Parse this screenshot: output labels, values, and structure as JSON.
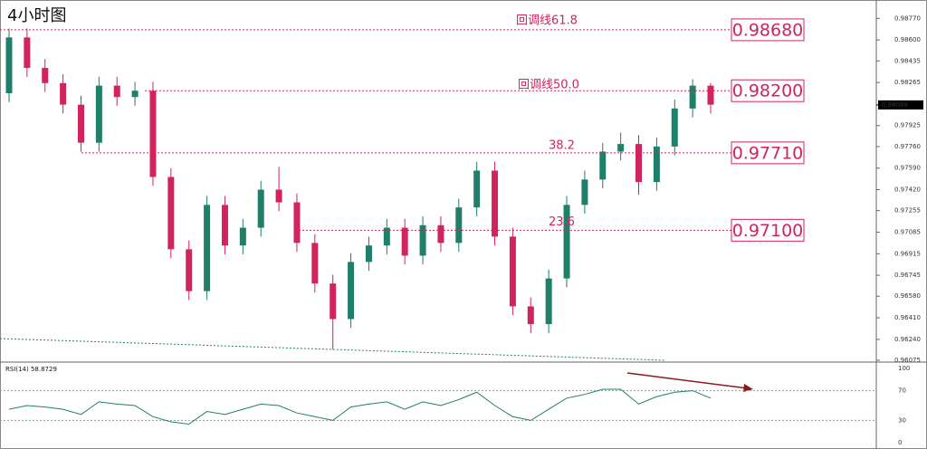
{
  "chart_data": [
    {
      "type": "candlestick",
      "title": "4小时图",
      "open": [
        0.9818,
        0.9862,
        0.9838,
        0.9826,
        0.9809,
        0.9779,
        0.9824,
        0.9815,
        0.982,
        0.9752,
        0.9695,
        0.9662,
        0.973,
        0.9698,
        0.9712,
        0.9742,
        0.9732,
        0.97,
        0.9668,
        0.964,
        0.9685,
        0.9698,
        0.9712,
        0.969,
        0.9714,
        0.97,
        0.9728,
        0.9757,
        0.9705,
        0.965,
        0.9636,
        0.9672,
        0.973,
        0.975,
        0.9772,
        0.9778,
        0.9748,
        0.9776,
        0.9806,
        0.9824
      ],
      "high": [
        0.9869,
        0.9869,
        0.9845,
        0.9833,
        0.9816,
        0.9831,
        0.9831,
        0.9827,
        0.9827,
        0.9759,
        0.9702,
        0.9737,
        0.9737,
        0.9719,
        0.9749,
        0.976,
        0.9739,
        0.9707,
        0.9675,
        0.9692,
        0.9705,
        0.9719,
        0.9719,
        0.9721,
        0.9721,
        0.9735,
        0.9764,
        0.9764,
        0.9712,
        0.9657,
        0.9679,
        0.9737,
        0.9757,
        0.9779,
        0.9787,
        0.9785,
        0.9783,
        0.9813,
        0.9829,
        0.9826
      ],
      "low": [
        0.9811,
        0.9831,
        0.9819,
        0.9802,
        0.9772,
        0.9772,
        0.9808,
        0.9808,
        0.9745,
        0.9688,
        0.9655,
        0.9655,
        0.9691,
        0.9691,
        0.9705,
        0.9725,
        0.9693,
        0.9661,
        0.9616,
        0.9633,
        0.9678,
        0.9691,
        0.9683,
        0.9683,
        0.9693,
        0.9693,
        0.9721,
        0.9698,
        0.9643,
        0.9629,
        0.9629,
        0.9665,
        0.9723,
        0.9743,
        0.9765,
        0.9738,
        0.9741,
        0.9769,
        0.9799,
        0.9802
      ],
      "close": [
        0.9862,
        0.9838,
        0.9826,
        0.9809,
        0.9779,
        0.9824,
        0.9815,
        0.982,
        0.9752,
        0.9695,
        0.9662,
        0.973,
        0.9698,
        0.9712,
        0.9742,
        0.9732,
        0.97,
        0.9668,
        0.964,
        0.9685,
        0.9698,
        0.9712,
        0.969,
        0.9714,
        0.97,
        0.9728,
        0.9757,
        0.9705,
        0.965,
        0.9636,
        0.9672,
        0.973,
        0.975,
        0.9772,
        0.9778,
        0.9748,
        0.9776,
        0.9806,
        0.9824,
        0.9809
      ],
      "up_color": "#1e7f6a",
      "down_color": "#d0245a",
      "ylim": [
        0.96075,
        0.98915
      ],
      "yticks": [
        {
          "value": 0.9877,
          "label": "0.98770"
        },
        {
          "value": 0.986,
          "label": "0.98600"
        },
        {
          "value": 0.98435,
          "label": "0.98435"
        },
        {
          "value": 0.98265,
          "label": "0.98265"
        },
        {
          "value": 0.97925,
          "label": "0.97925"
        },
        {
          "value": 0.9776,
          "label": "0.97760"
        },
        {
          "value": 0.9759,
          "label": "0.97590"
        },
        {
          "value": 0.9742,
          "label": "0.97420"
        },
        {
          "value": 0.97255,
          "label": "0.97255"
        },
        {
          "value": 0.97085,
          "label": "0.97085"
        },
        {
          "value": 0.96915,
          "label": "0.96915"
        },
        {
          "value": 0.96745,
          "label": "0.96745"
        },
        {
          "value": 0.9658,
          "label": "0.96580"
        },
        {
          "value": 0.9641,
          "label": "0.96410"
        },
        {
          "value": 0.9624,
          "label": "0.96240"
        },
        {
          "value": 0.96075,
          "label": "0.96075"
        }
      ],
      "last_price": 0.98088,
      "levels": [
        {
          "label": "回调线61.8",
          "value": 0.9868,
          "value_label": "0.98680"
        },
        {
          "label": "回调线50.0",
          "value": 0.982,
          "value_label": "0.98200"
        },
        {
          "label": "38.2",
          "value": 0.9771,
          "value_label": "0.97710"
        },
        {
          "label": "23.6",
          "value": 0.971,
          "value_label": "0.97100"
        }
      ],
      "level_color": "#d0245a"
    },
    {
      "type": "line",
      "title": "RSI(14) 58.8729",
      "values": [
        45,
        50,
        48,
        45,
        38,
        55,
        52,
        50,
        35,
        28,
        25,
        42,
        38,
        45,
        52,
        50,
        40,
        35,
        30,
        48,
        52,
        55,
        45,
        55,
        50,
        58,
        68,
        50,
        35,
        30,
        45,
        60,
        65,
        72,
        72,
        52,
        62,
        68,
        70,
        60
      ],
      "color": "#1e7f6a",
      "ylim": [
        0,
        100
      ],
      "yticks": [
        100,
        70,
        30,
        0
      ]
    }
  ]
}
